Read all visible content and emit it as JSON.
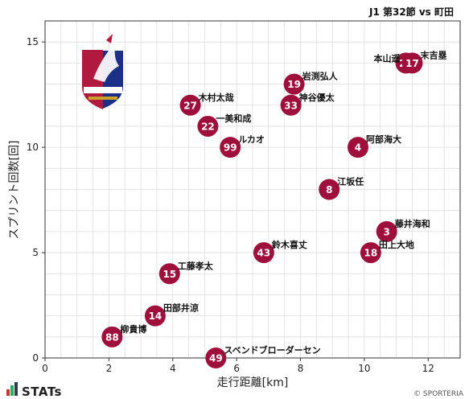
{
  "title": "J1 第32節 vs 町田",
  "footer": {
    "brand": "STATs",
    "copyright": "© SPORTERIA"
  },
  "colors": {
    "marker": "#9e0f3c",
    "grid": "#dddddd",
    "frame": "#333333"
  },
  "chart_data": {
    "type": "scatter",
    "xlabel": "走行距離[km]",
    "ylabel": "スプリント回数[回]",
    "xlim": [
      0,
      13
    ],
    "ylim": [
      0,
      16
    ],
    "xticks": [
      0,
      2,
      4,
      6,
      8,
      10,
      12
    ],
    "yticks": [
      0,
      5,
      10,
      15
    ],
    "grid": true,
    "points": [
      {
        "number": "26",
        "name": "本山遥",
        "x": 11.3,
        "y": 14,
        "label_side": "left"
      },
      {
        "number": "17",
        "name": "末吉塁",
        "x": 11.5,
        "y": 14,
        "label_side": "right"
      },
      {
        "number": "19",
        "name": "岩渕弘人",
        "x": 7.8,
        "y": 13,
        "label_side": "right"
      },
      {
        "number": "33",
        "name": "神谷優太",
        "x": 7.7,
        "y": 12,
        "label_side": "right"
      },
      {
        "number": "27",
        "name": "木村太哉",
        "x": 4.55,
        "y": 12,
        "label_side": "right"
      },
      {
        "number": "22",
        "name": "一美和成",
        "x": 5.1,
        "y": 11,
        "label_side": "right"
      },
      {
        "number": "99",
        "name": "ルカオ",
        "x": 5.8,
        "y": 10,
        "label_side": "right"
      },
      {
        "number": "4",
        "name": "阿部海大",
        "x": 9.8,
        "y": 10,
        "label_side": "right"
      },
      {
        "number": "8",
        "name": "江坂任",
        "x": 8.9,
        "y": 8,
        "label_side": "right"
      },
      {
        "number": "3",
        "name": "藤井海和",
        "x": 10.7,
        "y": 6,
        "label_side": "right"
      },
      {
        "number": "18",
        "name": "田上大地",
        "x": 10.2,
        "y": 5,
        "label_side": "right"
      },
      {
        "number": "43",
        "name": "鈴木喜丈",
        "x": 6.85,
        "y": 5,
        "label_side": "right"
      },
      {
        "number": "15",
        "name": "工藤孝太",
        "x": 3.9,
        "y": 4,
        "label_side": "right"
      },
      {
        "number": "14",
        "name": "田部井涼",
        "x": 3.45,
        "y": 2,
        "label_side": "right"
      },
      {
        "number": "88",
        "name": "柳貴博",
        "x": 2.1,
        "y": 1,
        "label_side": "right"
      },
      {
        "number": "49",
        "name": "スベンドブローダーセン",
        "x": 5.35,
        "y": 0,
        "label_side": "right"
      }
    ]
  }
}
